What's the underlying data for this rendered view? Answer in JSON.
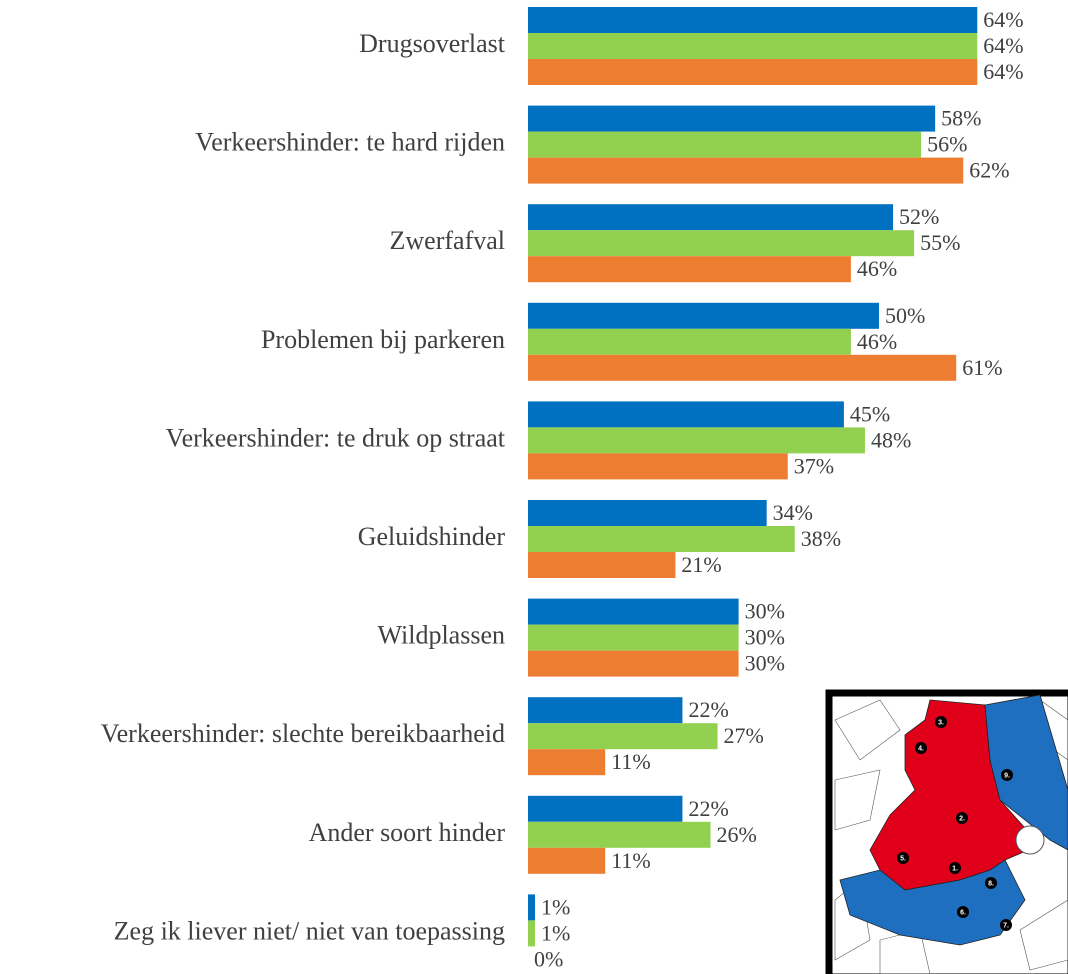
{
  "chart_data": {
    "type": "hbar",
    "categories": [
      "Drugsoverlast",
      "Verkeershinder: te hard rijden",
      "Zwerfafval",
      "Problemen bij parkeren",
      "Verkeershinder: te druk op straat",
      "Geluidshinder",
      "Wildplassen",
      "Verkeershinder: slechte bereikbaarheid",
      "Ander soort hinder",
      "Zeg ik liever niet/ niet van toepassing"
    ],
    "series": [
      {
        "color": "#0070c0",
        "values": [
          64,
          58,
          52,
          50,
          45,
          34,
          30,
          22,
          22,
          1
        ],
        "value_labels": [
          "64%",
          "58%",
          "52%",
          "50%",
          "45%",
          "34%",
          "30%",
          "22%",
          "22%",
          "1%"
        ]
      },
      {
        "color": "#92d050",
        "values": [
          64,
          56,
          55,
          46,
          48,
          38,
          30,
          27,
          26,
          1
        ],
        "value_labels": [
          "64%",
          "56%",
          "55%",
          "46%",
          "48%",
          "38%",
          "30%",
          "27%",
          "26%",
          "1%"
        ]
      },
      {
        "color": "#ed7d31",
        "values": [
          64,
          62,
          46,
          61,
          37,
          21,
          30,
          11,
          11,
          0
        ],
        "value_labels": [
          "64%",
          "62%",
          "46%",
          "61%",
          "37%",
          "21%",
          "30%",
          "11%",
          "11%",
          "0%"
        ]
      }
    ],
    "xlim": [
      0,
      100
    ],
    "grid": false,
    "map_labels": [
      "1.",
      "2.",
      "3.",
      "4.",
      "5.",
      "6.",
      "7.",
      "8.",
      "9."
    ]
  }
}
